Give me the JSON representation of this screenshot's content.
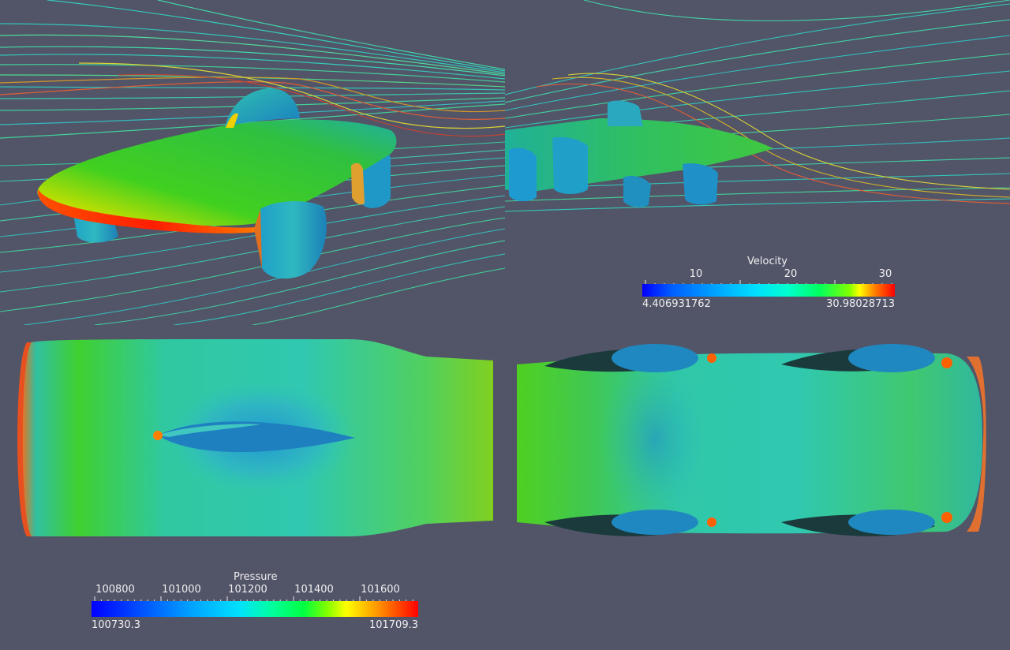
{
  "scene": {
    "background": "#525468",
    "views": [
      {
        "name": "perspective-front-view",
        "content": "solar car body colored by pressure with velocity streamlines"
      },
      {
        "name": "perspective-side-view",
        "content": "solar car underside with velocity streamlines"
      },
      {
        "name": "top-view",
        "content": "car body top surface colored by pressure"
      },
      {
        "name": "bottom-view",
        "content": "car body underside colored by pressure"
      }
    ]
  },
  "velocity_legend": {
    "title": "Velocity",
    "ticks": [
      "10",
      "20",
      "30"
    ],
    "min": "4.406931762",
    "max": "30.98028713"
  },
  "pressure_legend": {
    "title": "Pressure",
    "ticks": [
      "100800",
      "101000",
      "101200",
      "101400",
      "101600"
    ],
    "min": "100730.3",
    "max": "101709.3"
  },
  "colors": {
    "colormap": [
      "#0000ff",
      "#0066ff",
      "#00bfff",
      "#00ffcc",
      "#00ff66",
      "#66ff00",
      "#ffff00",
      "#ff8000",
      "#ff0000"
    ]
  }
}
